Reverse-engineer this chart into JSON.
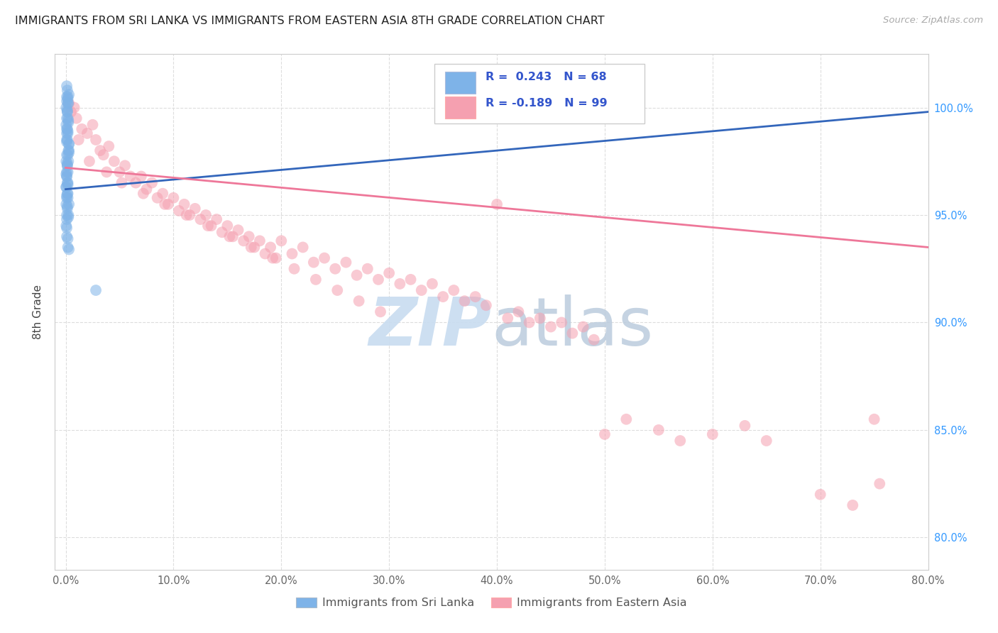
{
  "title": "IMMIGRANTS FROM SRI LANKA VS IMMIGRANTS FROM EASTERN ASIA 8TH GRADE CORRELATION CHART",
  "source": "Source: ZipAtlas.com",
  "ylabel": "8th Grade",
  "x_tick_labels": [
    "0.0%",
    "10.0%",
    "20.0%",
    "30.0%",
    "40.0%",
    "50.0%",
    "60.0%",
    "70.0%",
    "80.0%"
  ],
  "x_tick_values": [
    0.0,
    10.0,
    20.0,
    30.0,
    40.0,
    50.0,
    60.0,
    70.0,
    80.0
  ],
  "y_tick_labels": [
    "80.0%",
    "85.0%",
    "90.0%",
    "95.0%",
    "100.0%"
  ],
  "y_tick_values": [
    80.0,
    85.0,
    90.0,
    95.0,
    100.0
  ],
  "xlim": [
    -1.0,
    80.0
  ],
  "ylim": [
    78.5,
    102.5
  ],
  "color_blue": "#7EB3E8",
  "color_pink": "#F5A0B0",
  "color_blue_line": "#3366BB",
  "color_pink_line": "#EE7799",
  "color_legend_text": "#3355CC",
  "watermark_color": "#C8DCF0",
  "sri_lanka_x": [
    0.1,
    0.15,
    0.2,
    0.1,
    0.05,
    0.25,
    0.3,
    0.2,
    0.15,
    0.1,
    0.05,
    0.1,
    0.2,
    0.15,
    0.3,
    0.25,
    0.1,
    0.05,
    0.15,
    0.2,
    0.1,
    0.15,
    0.05,
    0.2,
    0.1,
    0.3,
    0.15,
    0.25,
    0.1,
    0.05,
    0.2,
    0.15,
    0.1,
    0.3,
    0.25,
    0.1,
    0.2,
    0.15,
    0.05,
    0.1,
    0.2,
    0.15,
    0.25,
    0.1,
    0.3,
    0.2,
    0.15,
    0.1,
    0.05,
    0.2,
    0.1,
    0.15,
    0.25,
    0.2,
    0.1,
    0.3,
    0.15,
    0.05,
    0.2,
    0.1,
    0.15,
    0.25,
    0.1,
    0.2,
    0.3,
    2.8,
    0.1,
    0.2
  ],
  "sri_lanka_y": [
    101.0,
    100.8,
    100.5,
    100.3,
    100.0,
    100.2,
    100.6,
    100.4,
    99.8,
    99.5,
    99.2,
    99.0,
    98.8,
    98.5,
    98.3,
    98.0,
    97.8,
    97.5,
    97.3,
    97.0,
    96.8,
    96.5,
    96.3,
    96.0,
    95.8,
    95.5,
    95.3,
    95.0,
    94.8,
    94.5,
    99.5,
    99.0,
    98.5,
    98.0,
    97.5,
    97.0,
    96.5,
    96.0,
    95.5,
    95.0,
    100.2,
    99.8,
    99.3,
    98.8,
    98.3,
    97.8,
    97.3,
    96.8,
    96.3,
    95.8,
    100.5,
    99.9,
    99.4,
    98.9,
    98.4,
    97.9,
    97.4,
    96.9,
    96.4,
    95.9,
    95.4,
    94.9,
    94.4,
    93.9,
    93.4,
    91.5,
    94.0,
    93.5
  ],
  "eastern_asia_x": [
    0.3,
    0.5,
    0.8,
    1.0,
    1.5,
    2.0,
    2.5,
    2.8,
    3.2,
    3.5,
    4.0,
    4.5,
    5.0,
    5.5,
    6.0,
    6.5,
    7.0,
    7.5,
    8.0,
    8.5,
    9.0,
    9.5,
    10.0,
    10.5,
    11.0,
    11.5,
    12.0,
    12.5,
    13.0,
    13.5,
    14.0,
    14.5,
    15.0,
    15.5,
    16.0,
    16.5,
    17.0,
    17.5,
    18.0,
    18.5,
    19.0,
    19.5,
    20.0,
    21.0,
    22.0,
    23.0,
    24.0,
    25.0,
    26.0,
    27.0,
    28.0,
    29.0,
    30.0,
    31.0,
    32.0,
    33.0,
    34.0,
    35.0,
    36.0,
    37.0,
    38.0,
    39.0,
    40.0,
    41.0,
    42.0,
    43.0,
    44.0,
    45.0,
    46.0,
    47.0,
    48.0,
    49.0,
    50.0,
    52.0,
    55.0,
    57.0,
    60.0,
    63.0,
    65.0,
    70.0,
    73.0,
    75.0,
    1.2,
    2.2,
    3.8,
    5.2,
    7.2,
    9.2,
    11.2,
    13.2,
    15.2,
    17.2,
    19.2,
    21.2,
    23.2,
    25.2,
    27.2,
    29.2,
    75.5
  ],
  "eastern_asia_y": [
    100.2,
    99.8,
    100.0,
    99.5,
    99.0,
    98.8,
    99.2,
    98.5,
    98.0,
    97.8,
    98.2,
    97.5,
    97.0,
    97.3,
    96.8,
    96.5,
    96.8,
    96.2,
    96.5,
    95.8,
    96.0,
    95.5,
    95.8,
    95.2,
    95.5,
    95.0,
    95.3,
    94.8,
    95.0,
    94.5,
    94.8,
    94.2,
    94.5,
    94.0,
    94.3,
    93.8,
    94.0,
    93.5,
    93.8,
    93.2,
    93.5,
    93.0,
    93.8,
    93.2,
    93.5,
    92.8,
    93.0,
    92.5,
    92.8,
    92.2,
    92.5,
    92.0,
    92.3,
    91.8,
    92.0,
    91.5,
    91.8,
    91.2,
    91.5,
    91.0,
    91.2,
    90.8,
    95.5,
    90.2,
    90.5,
    90.0,
    90.2,
    89.8,
    90.0,
    89.5,
    89.8,
    89.2,
    84.8,
    85.5,
    85.0,
    84.5,
    84.8,
    85.2,
    84.5,
    82.0,
    81.5,
    85.5,
    98.5,
    97.5,
    97.0,
    96.5,
    96.0,
    95.5,
    95.0,
    94.5,
    94.0,
    93.5,
    93.0,
    92.5,
    92.0,
    91.5,
    91.0,
    90.5,
    82.5
  ],
  "blue_trend_x": [
    0.0,
    80.0
  ],
  "blue_trend_y": [
    96.2,
    99.8
  ],
  "pink_trend_x": [
    0.0,
    80.0
  ],
  "pink_trend_y": [
    97.2,
    93.5
  ]
}
